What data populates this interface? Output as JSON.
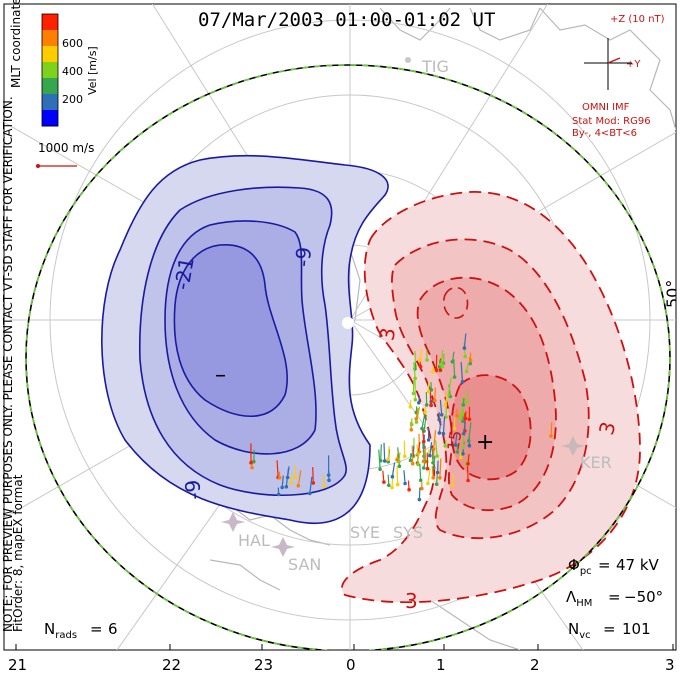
{
  "title": "07/Mar/2003 01:00-01:02 UT",
  "coords_label": "MLT coordinates",
  "color_bar": {
    "label": "Vel [m/s]",
    "ticks": [
      "600",
      "400",
      "200"
    ],
    "colors": [
      "#0000ff",
      "#2f6fb8",
      "#36a64f",
      "#7fd21c",
      "#ffcc00",
      "#ff7f00",
      "#ff2000"
    ]
  },
  "scale_vector": "1000 m/s",
  "preview_note": "NOTE: FOR PREVIEW PURPOSES ONLY. PLEASE CONTACT VT-SD STAFF FOR VERIFICATION.",
  "fit_note": "FitOrder: 8, mapEX format",
  "imf": {
    "z_label": "+Z (10 nT)",
    "y_label": "+Y",
    "source": "OMNI IMF",
    "model": "Stat Mod: RG96",
    "condition": "By-, 4<BT<6"
  },
  "latitude_label": "50°",
  "stations": [
    "TIG",
    "KER",
    "HAL",
    "SAN",
    "SYE",
    "SYS"
  ],
  "contours": {
    "negative": [
      "-21",
      "-9",
      "-9"
    ],
    "positive": [
      "3",
      "3",
      "15"
    ],
    "min_marker": "–",
    "max_marker": "+"
  },
  "stats": {
    "phi_pc": "47 kV",
    "lambda_hm": "−50°",
    "n_vc": "101",
    "n_rads": "6"
  },
  "mlt_ticks": [
    "21",
    "22",
    "23",
    "0",
    "1",
    "2",
    "3"
  ],
  "accent_colors": {
    "negative": "#1a1aa0",
    "positive": "#cc1111",
    "boundary": "#66cc33"
  }
}
